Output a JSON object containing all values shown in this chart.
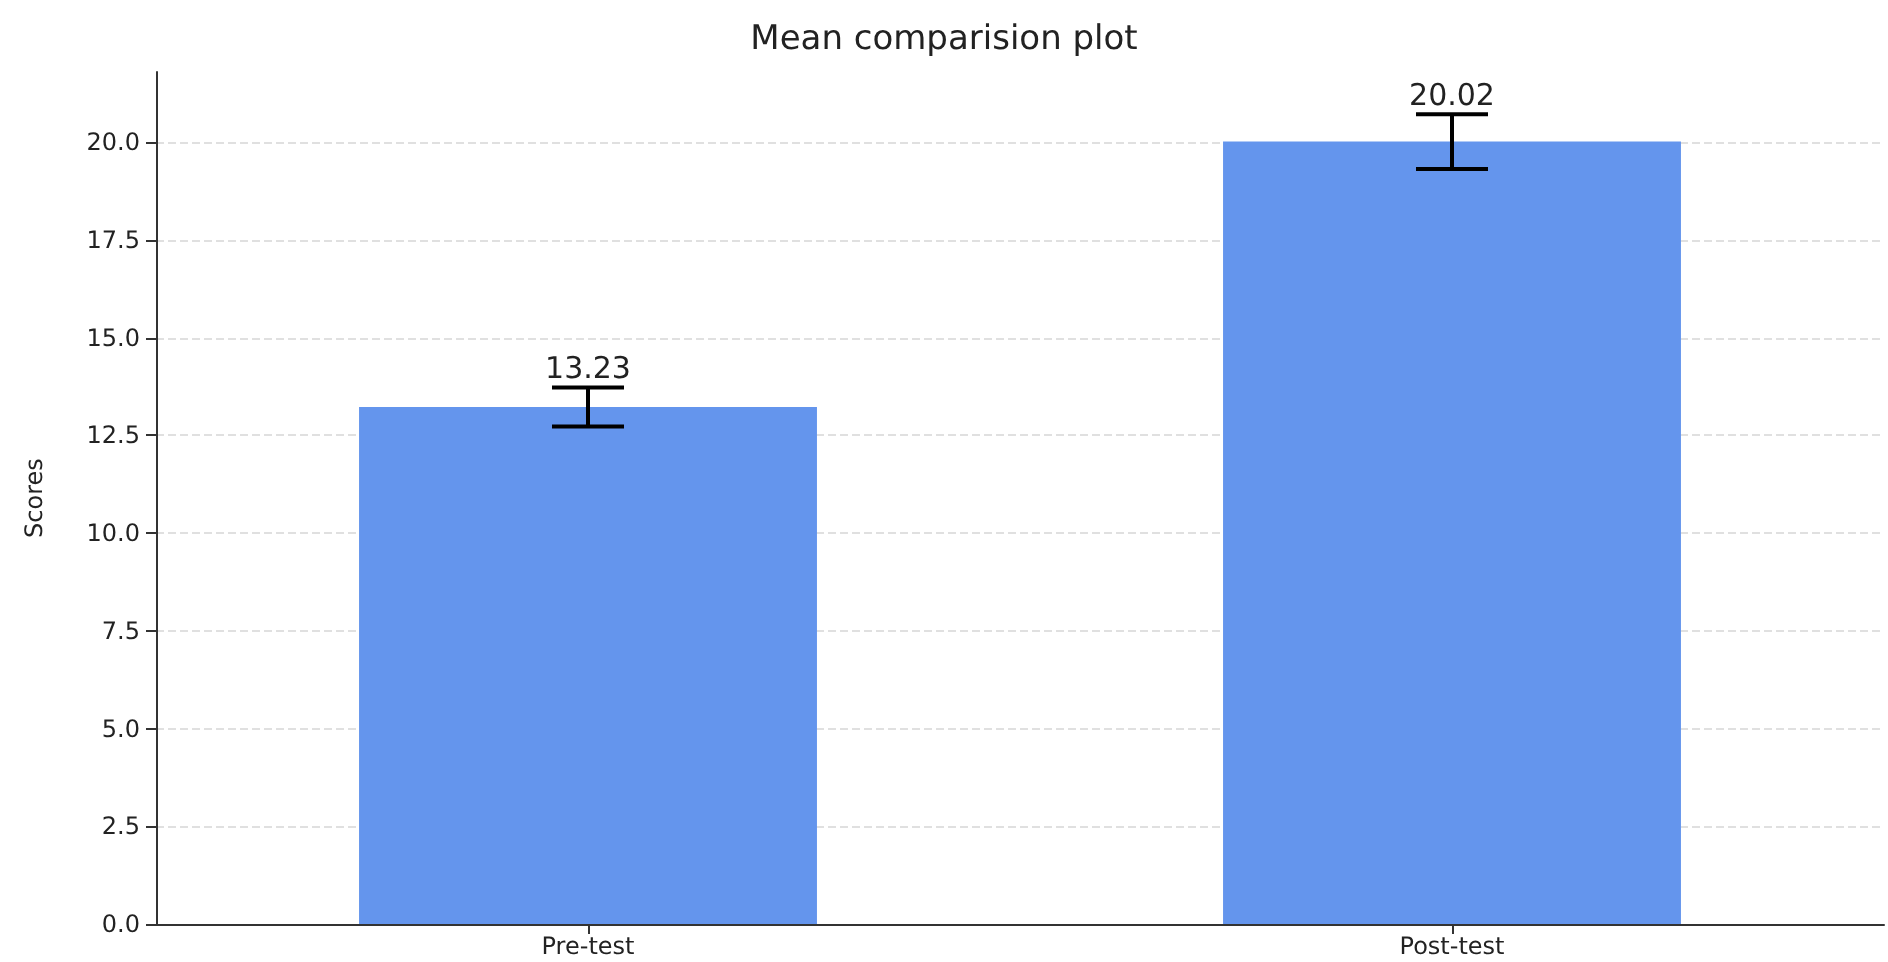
{
  "chart_data": {
    "type": "bar",
    "title": "Mean comparision plot",
    "ylabel": "Scores",
    "categories": [
      "Pre-test",
      "Post-test"
    ],
    "values": [
      13.23,
      20.02
    ],
    "errors": [
      0.5,
      0.7
    ],
    "color": "#6495ed",
    "data_labels": true,
    "ylim": [
      0,
      21.8
    ],
    "yticks": [
      {
        "value": 0,
        "label": "0.0"
      },
      2.5,
      {
        "value": 5,
        "label": "5.0"
      },
      7.5,
      {
        "value": 10,
        "label": "10.0"
      },
      12.5,
      {
        "value": 15,
        "label": "15.0"
      },
      17.5,
      {
        "value": 20,
        "label": "20.0"
      }
    ],
    "grid": "y"
  }
}
